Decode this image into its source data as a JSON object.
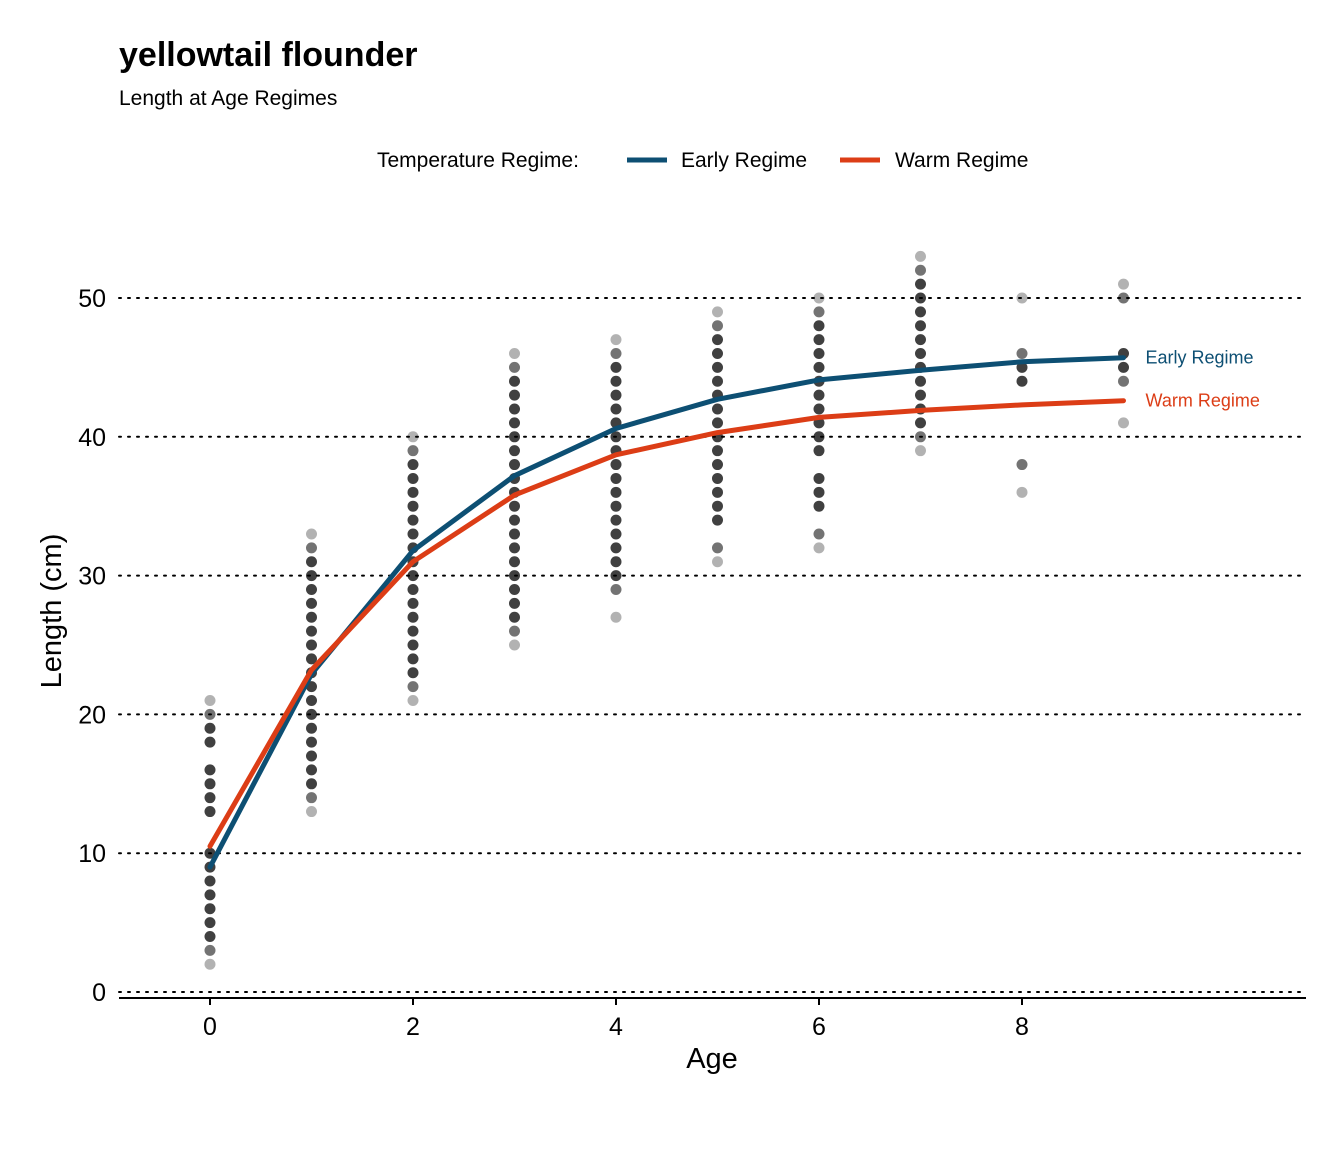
{
  "chart_data": {
    "type": "scatter",
    "title": "yellowtail flounder",
    "subtitle": "Length at Age Regimes",
    "xlabel": "Age",
    "ylabel": "Length (cm)",
    "xlim": [
      -0.9,
      10.8
    ],
    "ylim": [
      0,
      54
    ],
    "x_ticks": [
      0,
      2,
      4,
      6,
      8
    ],
    "y_ticks": [
      0,
      10,
      20,
      30,
      40,
      50
    ],
    "grid": "horizontal dotted",
    "legend": {
      "title": "Temperature Regime:",
      "position": "top",
      "entries": [
        "Early Regime",
        "Warm Regime"
      ]
    },
    "series": [
      {
        "name": "Early Regime",
        "color": "#0d4f73",
        "kind": "von Bertalanffy curve",
        "x": [
          0,
          1,
          2,
          3,
          4,
          5,
          6,
          7,
          8,
          9
        ],
        "y": [
          9.0,
          22.9,
          31.8,
          37.2,
          40.6,
          42.7,
          44.1,
          44.8,
          45.4,
          45.7
        ]
      },
      {
        "name": "Warm Regime",
        "color": "#dc3d16",
        "kind": "von Bertalanffy curve",
        "x": [
          0,
          1,
          2,
          3,
          4,
          5,
          6,
          7,
          8,
          9
        ],
        "y": [
          10.5,
          23.2,
          31.0,
          35.8,
          38.7,
          40.3,
          41.4,
          41.9,
          42.3,
          42.6
        ]
      }
    ],
    "observations": [
      {
        "age": 0,
        "lengths": [
          2,
          3,
          4,
          5,
          6,
          7,
          8,
          9,
          10,
          13,
          14,
          15,
          16,
          18,
          19,
          20,
          21
        ]
      },
      {
        "age": 1,
        "lengths": [
          13,
          14,
          15,
          16,
          17,
          18,
          19,
          20,
          21,
          22,
          23,
          24,
          25,
          26,
          27,
          28,
          29,
          30,
          31,
          32,
          33
        ]
      },
      {
        "age": 2,
        "lengths": [
          21,
          22,
          23,
          24,
          25,
          26,
          27,
          28,
          29,
          30,
          31,
          32,
          33,
          34,
          35,
          36,
          37,
          38,
          39,
          40
        ]
      },
      {
        "age": 3,
        "lengths": [
          25,
          26,
          27,
          28,
          29,
          30,
          31,
          32,
          33,
          34,
          35,
          36,
          37,
          38,
          39,
          40,
          41,
          42,
          43,
          44,
          45,
          46
        ]
      },
      {
        "age": 4,
        "lengths": [
          27,
          29,
          30,
          31,
          32,
          33,
          34,
          35,
          36,
          37,
          38,
          39,
          40,
          41,
          42,
          43,
          44,
          45,
          46,
          47
        ]
      },
      {
        "age": 5,
        "lengths": [
          31,
          32,
          34,
          35,
          36,
          37,
          38,
          39,
          40,
          41,
          42,
          43,
          44,
          45,
          46,
          47,
          48,
          49
        ]
      },
      {
        "age": 6,
        "lengths": [
          32,
          33,
          35,
          36,
          37,
          39,
          40,
          41,
          42,
          43,
          44,
          45,
          46,
          47,
          48,
          49,
          50
        ]
      },
      {
        "age": 7,
        "lengths": [
          39,
          40,
          41,
          42,
          43,
          44,
          45,
          46,
          47,
          48,
          49,
          50,
          51,
          52,
          53
        ]
      },
      {
        "age": 8,
        "lengths": [
          36,
          38,
          44,
          45,
          46,
          50
        ]
      },
      {
        "age": 9,
        "lengths": [
          41,
          44,
          45,
          46,
          50,
          51
        ]
      }
    ],
    "end_labels": [
      {
        "text": "Early Regime",
        "color": "#0d4f73"
      },
      {
        "text": "Warm Regime",
        "color": "#dc3d16"
      }
    ]
  }
}
